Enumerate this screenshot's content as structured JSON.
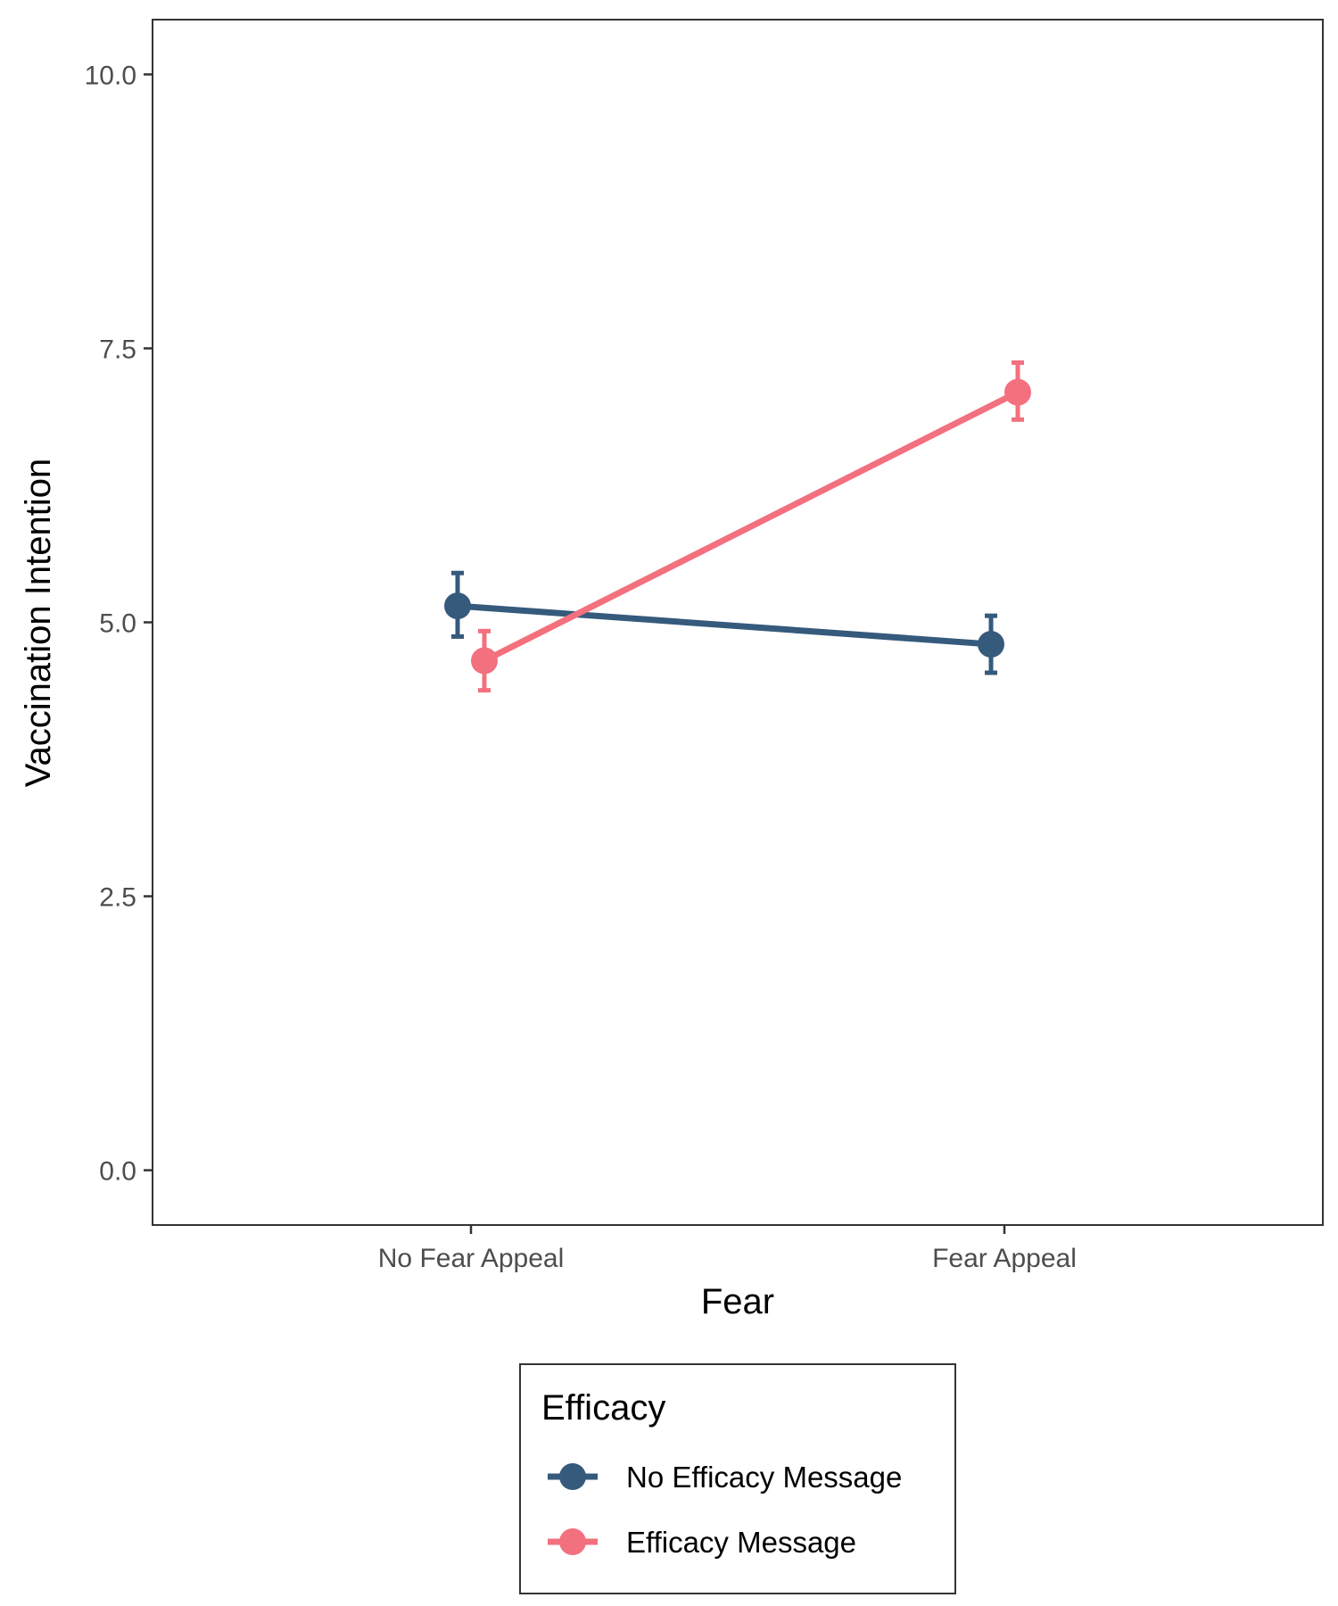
{
  "chart_data": {
    "type": "line",
    "xlabel": "Fear",
    "ylabel": "Vaccination Intention",
    "categories": [
      "No Fear Appeal",
      "Fear Appeal"
    ],
    "ylim": [
      -0.5,
      10.5
    ],
    "yticks": [
      0.0,
      2.5,
      5.0,
      7.5,
      10.0
    ],
    "ytick_labels": [
      "0.0",
      "2.5",
      "5.0",
      "7.5",
      "10.0"
    ],
    "grid": false,
    "error_bars": true,
    "legend": {
      "title": "Efficacy",
      "placement": "bottom"
    },
    "series": [
      {
        "name": "No Efficacy Message",
        "color": "#355a7c",
        "values": [
          5.15,
          4.8
        ],
        "error_low": [
          4.87,
          4.54
        ],
        "error_high": [
          5.45,
          5.06
        ]
      },
      {
        "name": "Efficacy Message",
        "color": "#f3707e",
        "values": [
          4.65,
          7.1
        ],
        "error_low": [
          4.38,
          6.85
        ],
        "error_high": [
          4.92,
          7.37
        ]
      }
    ]
  }
}
